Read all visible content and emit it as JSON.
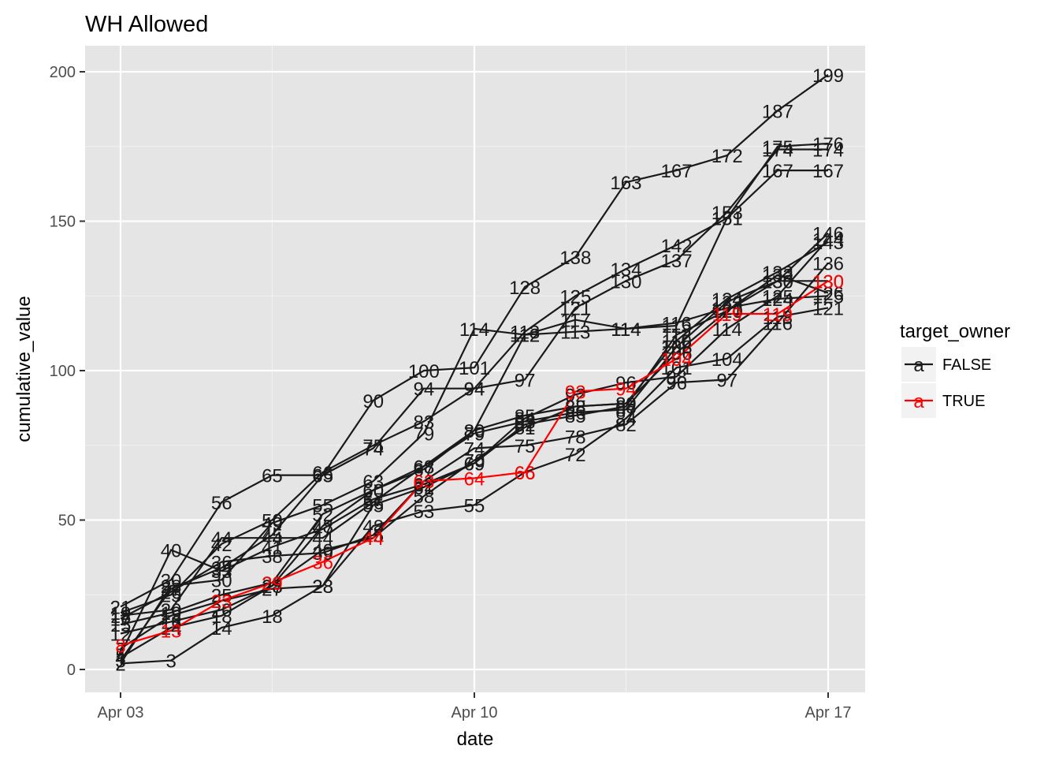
{
  "chart_data": {
    "type": "line",
    "title": "WH Allowed",
    "xlabel": "date",
    "ylabel": "cumulative_value",
    "x": [
      "2017-04-03",
      "2017-04-04",
      "2017-04-05",
      "2017-04-06",
      "2017-04-07",
      "2017-04-08",
      "2017-04-09",
      "2017-04-10",
      "2017-04-11",
      "2017-04-12",
      "2017-04-13",
      "2017-04-14",
      "2017-04-15",
      "2017-04-16",
      "2017-04-17"
    ],
    "x_tick_labels": [
      "Apr 03",
      "Apr 10",
      "Apr 17"
    ],
    "x_tick_dates": [
      "2017-04-03",
      "2017-04-10",
      "2017-04-17"
    ],
    "ylim": [
      -7,
      209
    ],
    "y_ticks": [
      0,
      50,
      100,
      150,
      200
    ],
    "grid": true,
    "legend_title": "target_owner",
    "legend_position": "right",
    "legend_key_glyph": "a",
    "colors": {
      "FALSE": "#1a1a1a",
      "TRUE": "#ff0000"
    },
    "series": [
      {
        "name": "FALSE",
        "values": [
          21,
          30,
          56,
          65,
          65,
          90,
          100,
          101,
          128,
          138,
          163,
          167,
          172,
          187,
          199
        ]
      },
      {
        "name": "FALSE",
        "values": [
          19,
          25,
          42,
          50,
          66,
          75,
          83,
          94,
          97,
          121,
          130,
          137,
          153,
          174,
          174
        ]
      },
      {
        "name": "FALSE",
        "values": [
          18,
          20,
          44,
          44,
          44,
          56,
          68,
          80,
          85,
          88,
          89,
          110,
          124,
          133,
          143
        ]
      },
      {
        "name": "FALSE",
        "values": [
          17,
          26,
          36,
          38,
          39,
          45,
          63,
          74,
          75,
          78,
          82,
          96,
          97,
          116,
          136
        ]
      },
      {
        "name": "FALSE",
        "values": [
          15,
          19,
          25,
          29,
          52,
          60,
          68,
          79,
          83,
          86,
          87,
          108,
          123,
          130,
          130
        ]
      },
      {
        "name": "FALSE",
        "values": [
          12,
          16,
          20,
          28,
          40,
          44,
          58,
          70,
          81,
          88,
          89,
          106,
          120,
          130,
          146
        ]
      },
      {
        "name": "FALSE",
        "values": [
          7,
          18,
          23,
          27,
          28,
          48,
          53,
          55,
          66,
          72,
          84,
          101,
          104,
          118,
          121
        ]
      },
      {
        "name": "FALSE",
        "values": [
          5,
          40,
          33,
          41,
          47,
          57,
          62,
          69,
          82,
          85,
          88,
          112,
          120,
          132,
          126
        ]
      },
      {
        "name": "FALSE",
        "values": [
          4,
          14,
          18,
          28,
          48,
          60,
          67,
          80,
          112,
          113,
          114,
          115,
          151,
          175,
          176
        ]
      },
      {
        "name": "FALSE",
        "values": [
          3,
          27,
          34,
          45,
          65,
          74,
          94,
          94,
          113,
          125,
          134,
          142,
          151,
          167,
          167
        ]
      },
      {
        "name": "FALSE",
        "values": [
          2,
          3,
          14,
          18,
          28,
          55,
          61,
          69,
          84,
          92,
          96,
          98,
          114,
          125,
          144
        ]
      },
      {
        "name": "FALSE",
        "values": [
          2,
          28,
          30,
          49,
          55,
          63,
          79,
          114,
          112,
          117,
          114,
          116,
          121,
          124,
          125
        ]
      },
      {
        "name": "TRUE",
        "values": [
          8,
          13,
          23,
          29,
          36,
          44,
          63,
          64,
          66,
          93,
          94,
          104,
          119,
          119,
          130
        ]
      }
    ]
  }
}
